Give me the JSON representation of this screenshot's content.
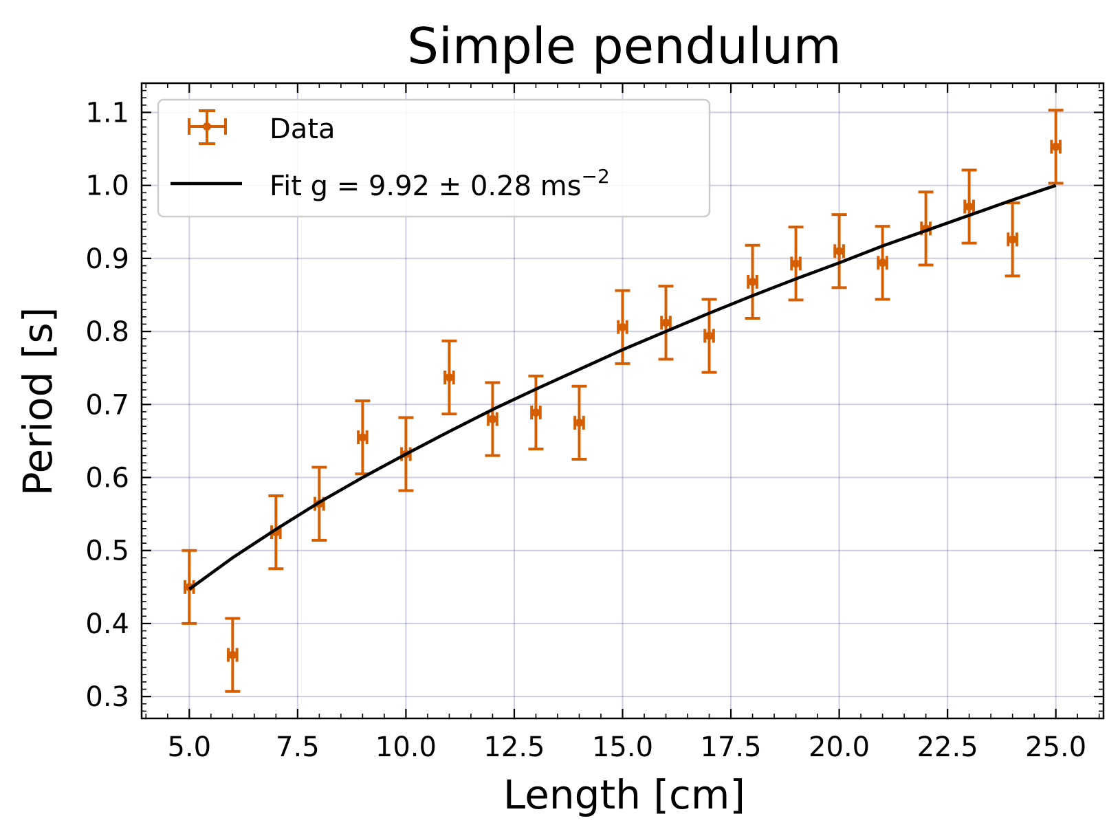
{
  "chart_data": {
    "type": "scatter",
    "title": "Simple pendulum",
    "xlabel": "Length [cm]",
    "ylabel": "Period [s]",
    "xlim": [
      3.9,
      26.1
    ],
    "ylim": [
      0.27,
      1.14
    ],
    "x_ticks": [
      5.0,
      7.5,
      10.0,
      12.5,
      15.0,
      17.5,
      20.0,
      22.5,
      25.0
    ],
    "x_tick_labels": [
      "5.0",
      "7.5",
      "10.0",
      "12.5",
      "15.0",
      "17.5",
      "20.0",
      "22.5",
      "25.0"
    ],
    "y_ticks": [
      0.3,
      0.4,
      0.5,
      0.6,
      0.7,
      0.8,
      0.9,
      1.0,
      1.1
    ],
    "y_tick_labels": [
      "0.3",
      "0.4",
      "0.5",
      "0.6",
      "0.7",
      "0.8",
      "0.9",
      "1.0",
      "1.1"
    ],
    "grid": true,
    "legend_position": "top-left",
    "series": [
      {
        "name": "Data",
        "kind": "errorbar",
        "color": "#d55e00",
        "x": [
          5,
          6,
          7,
          8,
          9,
          10,
          11,
          12,
          13,
          14,
          15,
          16,
          17,
          18,
          19,
          20,
          21,
          22,
          23,
          24,
          25
        ],
        "y": [
          0.45,
          0.357,
          0.525,
          0.564,
          0.655,
          0.632,
          0.737,
          0.68,
          0.689,
          0.675,
          0.806,
          0.812,
          0.794,
          0.868,
          0.893,
          0.91,
          0.894,
          0.941,
          0.971,
          0.926,
          1.053
        ],
        "yerr": 0.05,
        "xerr": 0.1
      },
      {
        "name_prefix": "Fit g = 9.92 ± 0.28 ms",
        "name_superscript": "−2",
        "kind": "line",
        "color": "#000000",
        "x": [
          5,
          6,
          7,
          8,
          9,
          10,
          11,
          12,
          13,
          14,
          15,
          16,
          17,
          18,
          19,
          20,
          21,
          22,
          23,
          24,
          25
        ],
        "y": [
          0.447,
          0.49,
          0.529,
          0.566,
          0.6,
          0.632,
          0.663,
          0.693,
          0.721,
          0.748,
          0.775,
          0.8,
          0.825,
          0.849,
          0.872,
          0.894,
          0.917,
          0.938,
          0.959,
          0.98,
          1.0
        ]
      }
    ]
  }
}
